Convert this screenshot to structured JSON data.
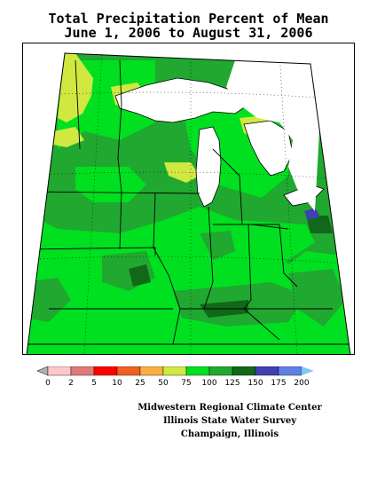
{
  "title": {
    "line1": "Total Precipitation Percent of Mean",
    "line2": "June 1, 2006 to August 31, 2006"
  },
  "map": {
    "region": "Midwest US",
    "water_color": "#ffffff",
    "boundary_color": "#000000"
  },
  "legend": {
    "labels": [
      "0",
      "2",
      "5",
      "10",
      "25",
      "50",
      "75",
      "100",
      "125",
      "150",
      "175",
      "200"
    ],
    "underflow_color": "#b0b0b0",
    "overflow_color": "#80c8f0",
    "colors": [
      "#ffc8c8",
      "#e07878",
      "#ff0000",
      "#f06020",
      "#f8b040",
      "#d0e840",
      "#00e020",
      "#20a830",
      "#106818",
      "#4040b0",
      "#6080e8"
    ]
  },
  "credits": {
    "line1": "Midwestern Regional Climate Center",
    "line2": "Illinois State Water Survey",
    "line3": "Champaign, Illinois"
  }
}
